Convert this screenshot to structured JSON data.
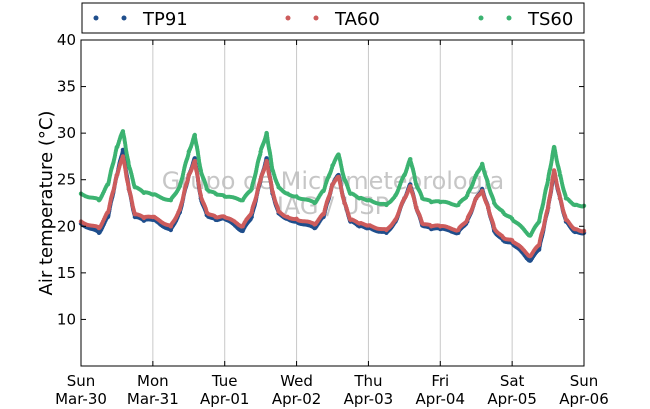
{
  "chart_data": {
    "type": "scatter",
    "title": "",
    "xlabel": "",
    "ylabel": "Air temperature (°C)",
    "ylim": [
      5,
      40
    ],
    "yticks": [
      10,
      15,
      20,
      25,
      30,
      35,
      40
    ],
    "xlim": [
      "Mar-30",
      "Apr-06"
    ],
    "xticks": [
      {
        "day": "Sun",
        "date": "Mar-30"
      },
      {
        "day": "Mon",
        "date": "Mar-31"
      },
      {
        "day": "Tue",
        "date": "Apr-01"
      },
      {
        "day": "Wed",
        "date": "Apr-02"
      },
      {
        "day": "Thu",
        "date": "Apr-03"
      },
      {
        "day": "Fri",
        "date": "Apr-04"
      },
      {
        "day": "Sat",
        "date": "Apr-05"
      },
      {
        "day": "Sun",
        "date": "Apr-06"
      }
    ],
    "grid": "vertical",
    "legend_position": "top",
    "watermark": [
      "Grupo de Micrometeorologia",
      "IAG / USP"
    ],
    "series": [
      {
        "name": "TP91",
        "color": "#1f4e8c",
        "x": [
          "Mar-30 00:00",
          "Mar-30 06:00",
          "Mar-30 09:00",
          "Mar-30 12:00",
          "Mar-30 14:00",
          "Mar-30 16:00",
          "Mar-30 18:00",
          "Mar-30 21:00",
          "Mar-31 00:00",
          "Mar-31 06:00",
          "Mar-31 09:00",
          "Mar-31 12:00",
          "Mar-31 14:00",
          "Mar-31 16:00",
          "Mar-31 18:00",
          "Mar-31 21:00",
          "Apr-01 00:00",
          "Apr-01 06:00",
          "Apr-01 09:00",
          "Apr-01 12:00",
          "Apr-01 14:00",
          "Apr-01 16:00",
          "Apr-01 18:00",
          "Apr-01 21:00",
          "Apr-02 00:00",
          "Apr-02 06:00",
          "Apr-02 09:00",
          "Apr-02 12:00",
          "Apr-02 14:00",
          "Apr-02 16:00",
          "Apr-02 18:00",
          "Apr-02 21:00",
          "Apr-03 00:00",
          "Apr-03 06:00",
          "Apr-03 09:00",
          "Apr-03 12:00",
          "Apr-03 14:00",
          "Apr-03 16:00",
          "Apr-03 18:00",
          "Apr-03 21:00",
          "Apr-04 00:00",
          "Apr-04 06:00",
          "Apr-04 09:00",
          "Apr-04 12:00",
          "Apr-04 14:00",
          "Apr-04 16:00",
          "Apr-04 18:00",
          "Apr-04 21:00",
          "Apr-05 00:00",
          "Apr-05 06:00",
          "Apr-05 09:00",
          "Apr-05 12:00",
          "Apr-05 14:00",
          "Apr-05 16:00",
          "Apr-05 18:00",
          "Apr-05 21:00",
          "Apr-06 00:00"
        ],
        "y": [
          20.3,
          19.3,
          21,
          25.5,
          28.2,
          24,
          21,
          20.6,
          20.7,
          19.6,
          21.5,
          25.5,
          27.3,
          23,
          21.2,
          20.7,
          20.8,
          19.5,
          21,
          25,
          27.3,
          23.5,
          21.4,
          20.8,
          20.5,
          19.8,
          21,
          24.5,
          25.5,
          22.5,
          20.5,
          20.0,
          19.8,
          19.3,
          20.5,
          23,
          24.5,
          22,
          20.1,
          19.7,
          19.7,
          19.3,
          20.5,
          23,
          24,
          22,
          19.5,
          18.5,
          18.2,
          16.3,
          17.5,
          22,
          25.7,
          23,
          20.5,
          19.4,
          19.3
        ]
      },
      {
        "name": "TA60",
        "color": "#cd5c5c",
        "x": [
          "Mar-30 00:00",
          "Mar-30 06:00",
          "Mar-30 09:00",
          "Mar-30 12:00",
          "Mar-30 14:00",
          "Mar-30 16:00",
          "Mar-30 18:00",
          "Mar-30 21:00",
          "Mar-31 00:00",
          "Mar-31 06:00",
          "Mar-31 09:00",
          "Mar-31 12:00",
          "Mar-31 14:00",
          "Mar-31 16:00",
          "Mar-31 18:00",
          "Mar-31 21:00",
          "Apr-01 00:00",
          "Apr-01 06:00",
          "Apr-01 09:00",
          "Apr-01 12:00",
          "Apr-01 14:00",
          "Apr-01 16:00",
          "Apr-01 18:00",
          "Apr-01 21:00",
          "Apr-02 00:00",
          "Apr-02 06:00",
          "Apr-02 09:00",
          "Apr-02 12:00",
          "Apr-02 14:00",
          "Apr-02 16:00",
          "Apr-02 18:00",
          "Apr-02 21:00",
          "Apr-03 00:00",
          "Apr-03 06:00",
          "Apr-03 09:00",
          "Apr-03 12:00",
          "Apr-03 14:00",
          "Apr-03 16:00",
          "Apr-03 18:00",
          "Apr-03 21:00",
          "Apr-04 00:00",
          "Apr-04 06:00",
          "Apr-04 09:00",
          "Apr-04 12:00",
          "Apr-04 14:00",
          "Apr-04 16:00",
          "Apr-04 18:00",
          "Apr-04 21:00",
          "Apr-05 00:00",
          "Apr-05 06:00",
          "Apr-05 09:00",
          "Apr-05 12:00",
          "Apr-05 14:00",
          "Apr-05 16:00",
          "Apr-05 18:00",
          "Apr-05 21:00",
          "Apr-06 00:00"
        ],
        "y": [
          20.5,
          19.8,
          21.5,
          25.5,
          27.5,
          24,
          21.3,
          20.9,
          21,
          20,
          21.8,
          25.5,
          27,
          23.3,
          21.5,
          21,
          21,
          20,
          21.5,
          25,
          27,
          23.7,
          21.6,
          21,
          20.8,
          20.2,
          21.3,
          24.5,
          25.3,
          22.5,
          20.7,
          20.3,
          20.1,
          19.6,
          20.7,
          23,
          24.3,
          22,
          20.3,
          20,
          20,
          19.6,
          20.7,
          23,
          23.8,
          22,
          19.8,
          18.8,
          18.5,
          16.8,
          18,
          22,
          26,
          23,
          20.7,
          19.7,
          19.5
        ]
      },
      {
        "name": "TS60",
        "color": "#3cb371",
        "x": [
          "Mar-30 00:00",
          "Mar-30 06:00",
          "Mar-30 09:00",
          "Mar-30 12:00",
          "Mar-30 14:00",
          "Mar-30 16:00",
          "Mar-30 18:00",
          "Mar-30 21:00",
          "Mar-31 00:00",
          "Mar-31 06:00",
          "Mar-31 09:00",
          "Mar-31 12:00",
          "Mar-31 14:00",
          "Mar-31 16:00",
          "Mar-31 18:00",
          "Mar-31 21:00",
          "Apr-01 00:00",
          "Apr-01 06:00",
          "Apr-01 09:00",
          "Apr-01 12:00",
          "Apr-01 14:00",
          "Apr-01 16:00",
          "Apr-01 18:00",
          "Apr-01 21:00",
          "Apr-02 00:00",
          "Apr-02 06:00",
          "Apr-02 09:00",
          "Apr-02 12:00",
          "Apr-02 14:00",
          "Apr-02 16:00",
          "Apr-02 18:00",
          "Apr-02 21:00",
          "Apr-03 00:00",
          "Apr-03 06:00",
          "Apr-03 09:00",
          "Apr-03 12:00",
          "Apr-03 14:00",
          "Apr-03 16:00",
          "Apr-03 18:00",
          "Apr-03 21:00",
          "Apr-04 00:00",
          "Apr-04 06:00",
          "Apr-04 09:00",
          "Apr-04 12:00",
          "Apr-04 14:00",
          "Apr-04 16:00",
          "Apr-04 18:00",
          "Apr-04 21:00",
          "Apr-05 00:00",
          "Apr-05 06:00",
          "Apr-05 09:00",
          "Apr-05 12:00",
          "Apr-05 14:00",
          "Apr-05 16:00",
          "Apr-05 18:00",
          "Apr-05 21:00",
          "Apr-06 00:00"
        ],
        "y": [
          23.5,
          22.8,
          24.5,
          28.5,
          30.2,
          26.5,
          24.2,
          23.6,
          23.4,
          22.8,
          24.3,
          28,
          29.8,
          26,
          24,
          23.5,
          23.2,
          22.8,
          24,
          28,
          30,
          26,
          24.2,
          23.5,
          23.2,
          22.5,
          23.8,
          26.5,
          27.7,
          25,
          23.5,
          23,
          22.8,
          22.3,
          23.3,
          25.5,
          27.2,
          24.5,
          23,
          22.6,
          22.6,
          22.3,
          23.3,
          25.5,
          26.7,
          24.5,
          22.5,
          21.5,
          20.8,
          19,
          20.5,
          25,
          28.5,
          25.5,
          23,
          22.3,
          22.2
        ]
      }
    ]
  }
}
